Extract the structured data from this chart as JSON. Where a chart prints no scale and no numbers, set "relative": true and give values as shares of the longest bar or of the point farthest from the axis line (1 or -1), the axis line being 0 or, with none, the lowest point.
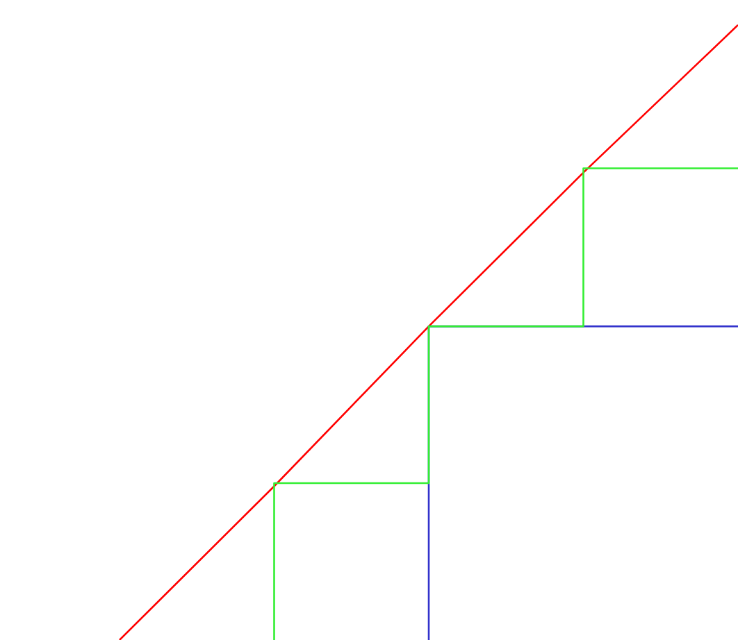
{
  "chart_data": {
    "type": "line",
    "relative": true,
    "categories": [
      null,
      null,
      null,
      null,
      null
    ],
    "series": [
      {
        "color": "#ff0000",
        "values": [
          0,
          0.25,
          0.51,
          0.76,
          1
        ]
      },
      {
        "type": "step",
        "color": "#3333cc",
        "values": [
          null,
          null,
          0,
          0.51,
          0.51
        ]
      },
      {
        "type": "step",
        "color": "#33ee33",
        "values": [
          null,
          0,
          0.255,
          0.51,
          0.767
        ]
      }
    ]
  }
}
